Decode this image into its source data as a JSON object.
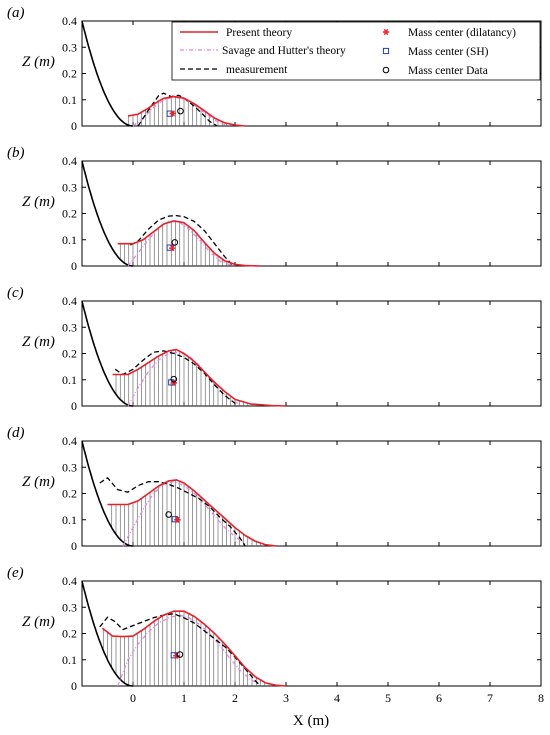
{
  "figure": {
    "xlabel": "X (m)",
    "ylabel": "Z (m)"
  },
  "legend": [
    {
      "label": "Present theory",
      "color": "#e8202a",
      "style": "solid"
    },
    {
      "label": "Savage and Hutter's theory",
      "color": "#e68ae0",
      "style": "dashdot"
    },
    {
      "label": "measurement",
      "color": "#000000",
      "style": "dashed"
    },
    {
      "label": "Mass center (dilatancy)",
      "color": "#e8202a",
      "marker": "asterisk"
    },
    {
      "label": "Mass center (SH)",
      "color": "#1f3fbf",
      "marker": "square"
    },
    {
      "label": "Mass center Data",
      "color": "#000000",
      "marker": "circle"
    }
  ],
  "chart_data": [
    {
      "type": "line",
      "panel": "(a)",
      "xlim": [
        -1,
        8
      ],
      "ylim": [
        0,
        0.4
      ],
      "xticks": [
        0,
        1,
        2,
        3,
        4,
        5,
        6,
        7,
        8
      ],
      "yticks": [
        0,
        0.1,
        0.2,
        0.3,
        0.4
      ],
      "show_xtick_labels": false,
      "series": [
        {
          "name": "Present theory",
          "x": [
            -0.1,
            0.1,
            0.3,
            0.5,
            0.6,
            0.8,
            1.0,
            1.2,
            1.4,
            1.6,
            1.8,
            2.0,
            2.2
          ],
          "y": [
            0.038,
            0.045,
            0.068,
            0.095,
            0.105,
            0.112,
            0.106,
            0.085,
            0.058,
            0.03,
            0.012,
            0.004,
            0.0
          ]
        },
        {
          "name": "Savage and Hutter's theory",
          "x": [
            0.0,
            0.2,
            0.4,
            0.6,
            0.8,
            1.0,
            1.2,
            1.4,
            1.6,
            1.8
          ],
          "y": [
            0.0,
            0.03,
            0.07,
            0.1,
            0.11,
            0.102,
            0.08,
            0.05,
            0.022,
            0.005
          ]
        },
        {
          "name": "measurement",
          "x": [
            0.1,
            0.3,
            0.5,
            0.6,
            0.75,
            0.9,
            1.05,
            1.2,
            1.35,
            1.5,
            1.65
          ],
          "y": [
            0.0,
            0.06,
            0.115,
            0.125,
            0.112,
            0.117,
            0.1,
            0.075,
            0.048,
            0.018,
            0.0
          ]
        }
      ],
      "mass_centers": {
        "dilatancy": [
          0.78,
          0.048
        ],
        "sh": [
          0.72,
          0.047
        ],
        "data": [
          0.93,
          0.057
        ]
      }
    },
    {
      "type": "line",
      "panel": "(b)",
      "xlim": [
        -1,
        8
      ],
      "ylim": [
        0,
        0.4
      ],
      "xticks": [
        0,
        1,
        2,
        3,
        4,
        5,
        6,
        7,
        8
      ],
      "yticks": [
        0,
        0.1,
        0.2,
        0.3,
        0.4
      ],
      "show_xtick_labels": false,
      "series": [
        {
          "name": "Present theory",
          "x": [
            -0.3,
            0.0,
            0.2,
            0.4,
            0.6,
            0.8,
            1.0,
            1.2,
            1.4,
            1.6,
            1.8,
            2.0,
            2.2,
            2.5
          ],
          "y": [
            0.085,
            0.085,
            0.1,
            0.13,
            0.16,
            0.172,
            0.165,
            0.135,
            0.09,
            0.048,
            0.02,
            0.006,
            0.002,
            0.0
          ]
        },
        {
          "name": "Savage and Hutter's theory",
          "x": [
            -0.1,
            0.1,
            0.3,
            0.5,
            0.7,
            0.9,
            1.1,
            1.3,
            1.5,
            1.7,
            1.9
          ],
          "y": [
            0.0,
            0.05,
            0.1,
            0.145,
            0.17,
            0.168,
            0.14,
            0.1,
            0.055,
            0.02,
            0.004
          ]
        },
        {
          "name": "measurement",
          "x": [
            -0.05,
            0.1,
            0.3,
            0.5,
            0.7,
            0.85,
            1.0,
            1.2,
            1.4,
            1.6,
            1.8,
            1.95
          ],
          "y": [
            0.08,
            0.095,
            0.14,
            0.175,
            0.19,
            0.192,
            0.188,
            0.17,
            0.135,
            0.085,
            0.035,
            0.005
          ]
        }
      ],
      "mass_centers": {
        "dilatancy": [
          0.77,
          0.068
        ],
        "sh": [
          0.72,
          0.07
        ],
        "data": [
          0.82,
          0.09
        ]
      }
    },
    {
      "type": "line",
      "panel": "(c)",
      "xlim": [
        -1,
        8
      ],
      "ylim": [
        0,
        0.4
      ],
      "xticks": [
        0,
        1,
        2,
        3,
        4,
        5,
        6,
        7,
        8
      ],
      "yticks": [
        0,
        0.1,
        0.2,
        0.3,
        0.4
      ],
      "show_xtick_labels": false,
      "series": [
        {
          "name": "Present theory",
          "x": [
            -0.4,
            -0.1,
            0.1,
            0.3,
            0.5,
            0.7,
            0.85,
            1.0,
            1.2,
            1.4,
            1.6,
            1.8,
            2.0,
            2.3,
            2.7,
            3.0
          ],
          "y": [
            0.12,
            0.12,
            0.14,
            0.165,
            0.19,
            0.21,
            0.215,
            0.2,
            0.17,
            0.13,
            0.09,
            0.055,
            0.025,
            0.008,
            0.002,
            0.0
          ]
        },
        {
          "name": "Savage and Hutter's theory",
          "x": [
            -0.1,
            0.1,
            0.3,
            0.5,
            0.7,
            0.9,
            1.1,
            1.3,
            1.5,
            1.7,
            1.9,
            2.1
          ],
          "y": [
            0.0,
            0.07,
            0.13,
            0.175,
            0.2,
            0.205,
            0.19,
            0.155,
            0.105,
            0.06,
            0.025,
            0.005
          ]
        },
        {
          "name": "measurement",
          "x": [
            -0.35,
            -0.2,
            0.0,
            0.2,
            0.4,
            0.6,
            0.8,
            1.0,
            1.2,
            1.4,
            1.6,
            1.8,
            2.0
          ],
          "y": [
            0.14,
            0.12,
            0.14,
            0.175,
            0.205,
            0.21,
            0.2,
            0.185,
            0.16,
            0.125,
            0.08,
            0.04,
            0.01
          ]
        }
      ],
      "mass_centers": {
        "dilatancy": [
          0.8,
          0.088
        ],
        "sh": [
          0.75,
          0.09
        ],
        "data": [
          0.8,
          0.102
        ]
      }
    },
    {
      "type": "line",
      "panel": "(d)",
      "xlim": [
        -1,
        8
      ],
      "ylim": [
        0,
        0.4
      ],
      "xticks": [
        0,
        1,
        2,
        3,
        4,
        5,
        6,
        7,
        8
      ],
      "yticks": [
        0,
        0.1,
        0.2,
        0.3,
        0.4
      ],
      "show_xtick_labels": false,
      "series": [
        {
          "name": "Present theory",
          "x": [
            -0.5,
            -0.1,
            0.1,
            0.3,
            0.5,
            0.7,
            0.85,
            1.0,
            1.2,
            1.4,
            1.6,
            1.8,
            2.0,
            2.2,
            2.4,
            2.6,
            2.8
          ],
          "y": [
            0.158,
            0.158,
            0.172,
            0.2,
            0.228,
            0.248,
            0.252,
            0.24,
            0.21,
            0.175,
            0.14,
            0.105,
            0.07,
            0.04,
            0.018,
            0.005,
            0.0
          ]
        },
        {
          "name": "Savage and Hutter's theory",
          "x": [
            -0.2,
            0.0,
            0.2,
            0.4,
            0.6,
            0.8,
            1.0,
            1.2,
            1.4,
            1.6,
            1.8,
            2.0,
            2.2
          ],
          "y": [
            0.0,
            0.07,
            0.14,
            0.2,
            0.235,
            0.245,
            0.23,
            0.2,
            0.16,
            0.115,
            0.07,
            0.035,
            0.01
          ]
        },
        {
          "name": "measurement",
          "x": [
            -0.65,
            -0.5,
            -0.3,
            -0.1,
            0.1,
            0.3,
            0.5,
            0.7,
            0.9,
            1.1,
            1.3,
            1.5,
            1.7,
            1.9,
            2.1,
            2.2
          ],
          "y": [
            0.24,
            0.26,
            0.215,
            0.205,
            0.23,
            0.245,
            0.245,
            0.235,
            0.22,
            0.2,
            0.18,
            0.15,
            0.11,
            0.075,
            0.03,
            0.0
          ]
        }
      ],
      "mass_centers": {
        "dilatancy": [
          0.87,
          0.1
        ],
        "sh": [
          0.82,
          0.102
        ],
        "data": [
          0.7,
          0.12
        ]
      }
    },
    {
      "type": "line",
      "panel": "(e)",
      "xlim": [
        -1,
        8
      ],
      "ylim": [
        0,
        0.4
      ],
      "xticks": [
        0,
        1,
        2,
        3,
        4,
        5,
        6,
        7,
        8
      ],
      "yticks": [
        0,
        0.1,
        0.2,
        0.3,
        0.4
      ],
      "show_xtick_labels": true,
      "series": [
        {
          "name": "Present theory",
          "x": [
            -0.6,
            -0.4,
            -0.2,
            0.0,
            0.2,
            0.4,
            0.6,
            0.8,
            1.0,
            1.2,
            1.4,
            1.6,
            1.8,
            2.0,
            2.2,
            2.4,
            2.6,
            2.8,
            3.0
          ],
          "y": [
            0.22,
            0.19,
            0.188,
            0.19,
            0.215,
            0.245,
            0.27,
            0.285,
            0.285,
            0.265,
            0.235,
            0.2,
            0.16,
            0.115,
            0.07,
            0.035,
            0.012,
            0.003,
            0.0
          ]
        },
        {
          "name": "Savage and Hutter's theory",
          "x": [
            -0.3,
            -0.1,
            0.1,
            0.3,
            0.5,
            0.7,
            0.9,
            1.1,
            1.3,
            1.5,
            1.7,
            1.9,
            2.1,
            2.3,
            2.5
          ],
          "y": [
            0.0,
            0.1,
            0.16,
            0.205,
            0.24,
            0.26,
            0.27,
            0.26,
            0.235,
            0.2,
            0.155,
            0.105,
            0.06,
            0.025,
            0.005
          ]
        },
        {
          "name": "measurement",
          "x": [
            -0.65,
            -0.5,
            -0.35,
            -0.2,
            0.0,
            0.2,
            0.4,
            0.6,
            0.8,
            1.0,
            1.2,
            1.4,
            1.6,
            1.8,
            2.0,
            2.2,
            2.4,
            2.5
          ],
          "y": [
            0.225,
            0.262,
            0.245,
            0.215,
            0.23,
            0.245,
            0.26,
            0.27,
            0.275,
            0.26,
            0.24,
            0.21,
            0.18,
            0.15,
            0.11,
            0.065,
            0.02,
            0.0
          ]
        }
      ],
      "mass_centers": {
        "dilatancy": [
          0.85,
          0.115
        ],
        "sh": [
          0.8,
          0.117
        ],
        "data": [
          0.92,
          0.12
        ]
      }
    }
  ]
}
